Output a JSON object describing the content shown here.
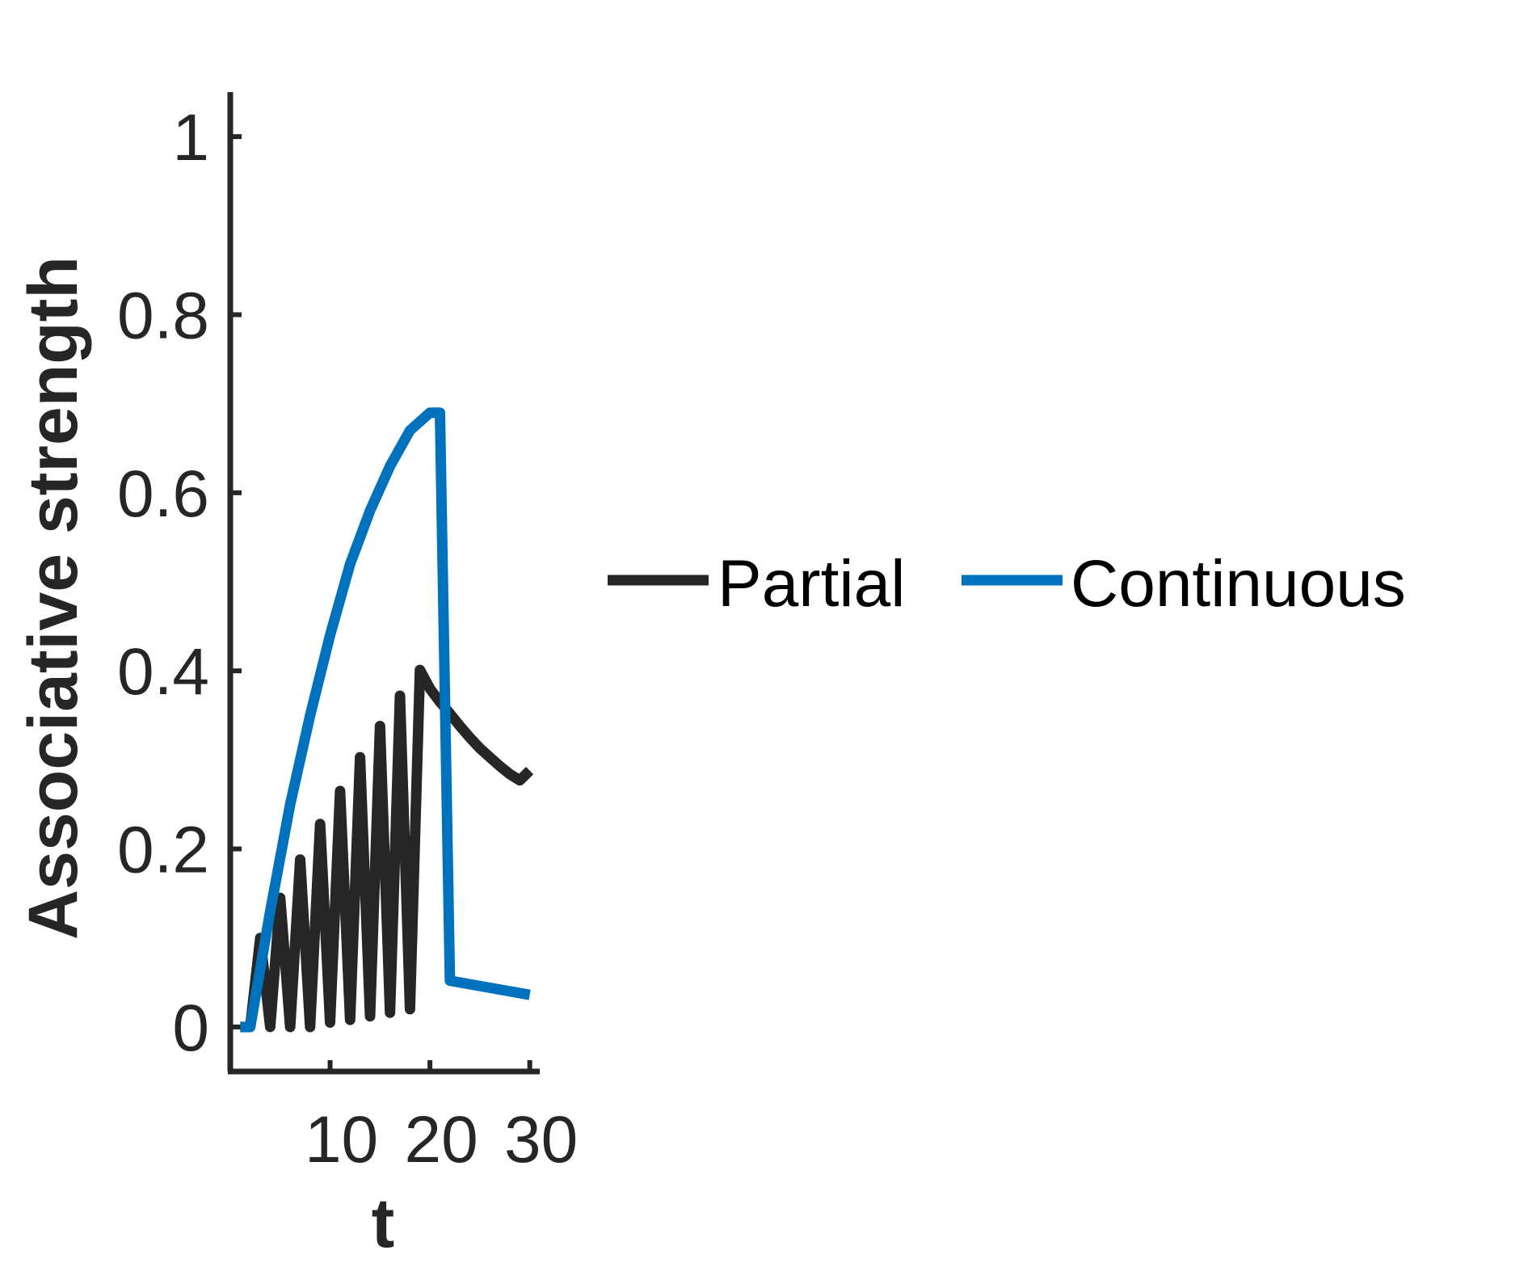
{
  "chart_data": {
    "type": "line",
    "xlabel": "t",
    "ylabel": "Associative strength",
    "xlim": [
      0,
      31
    ],
    "ylim": [
      -0.05,
      1.05
    ],
    "xticks": [
      10,
      20,
      30
    ],
    "yticks": [
      0,
      0.2,
      0.4,
      0.6,
      0.8,
      1
    ],
    "ytick_labels": [
      "0",
      "0.2",
      "0.4",
      "0.6",
      "0.8",
      "1"
    ],
    "xtick_labels": [
      "10",
      "20",
      "30"
    ],
    "legend_placement": "right",
    "series": [
      {
        "name": "Partial",
        "color": "#262626",
        "x": [
          1,
          2,
          3,
          4,
          5,
          6,
          7,
          8,
          9,
          10,
          11,
          12,
          13,
          14,
          15,
          16,
          17,
          18,
          19,
          20,
          21,
          22,
          23,
          24,
          25,
          26,
          27,
          28,
          29,
          30
        ],
        "y": [
          0,
          0,
          0.1,
          0,
          0.145,
          0,
          0.188,
          0,
          0.228,
          0.005,
          0.265,
          0.008,
          0.303,
          0.012,
          0.338,
          0.016,
          0.372,
          0.02,
          0.401,
          0.38,
          0.365,
          0.352,
          0.338,
          0.325,
          0.313,
          0.303,
          0.293,
          0.284,
          0.277,
          0.288
        ]
      },
      {
        "name": "Continuous",
        "color": "#0072bd",
        "x": [
          1,
          2,
          4,
          6,
          8,
          10,
          12,
          14,
          16,
          18,
          20,
          21,
          22,
          30
        ],
        "y": [
          0,
          0,
          0.13,
          0.25,
          0.35,
          0.44,
          0.52,
          0.58,
          0.63,
          0.67,
          0.69,
          0.69,
          0.052,
          0.036
        ]
      }
    ]
  }
}
